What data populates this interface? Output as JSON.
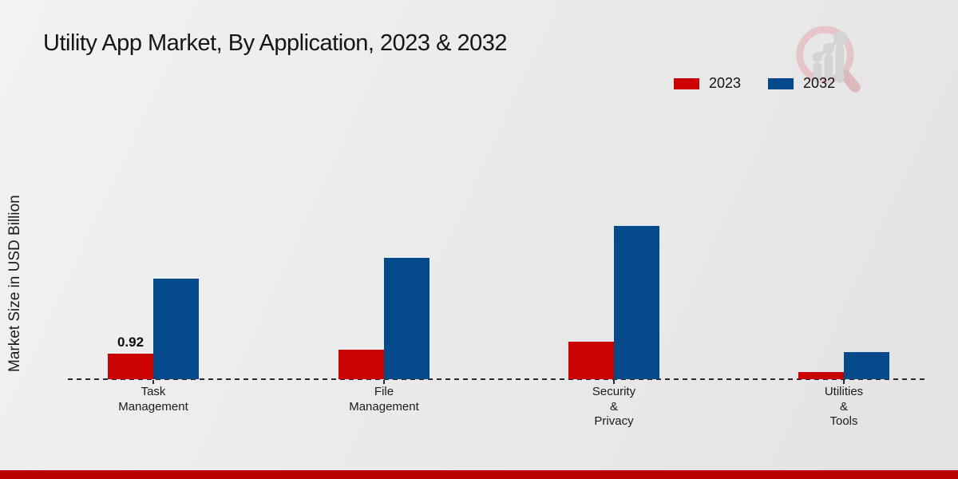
{
  "page": {
    "title": "Utility App Market, By Application, 2023 & 2032",
    "ylabel": "Market Size in USD Billion",
    "footer_color": "#b80202",
    "watermark_icon": "magnifier-bar-chart-logo"
  },
  "legend": {
    "items": [
      {
        "label": "2023",
        "color": "#cc0202"
      },
      {
        "label": "2032",
        "color": "#04498a"
      }
    ]
  },
  "chart_data": {
    "type": "bar",
    "title": "Utility App Market, By Application, 2023 & 2032",
    "ylabel": "Market Size in USD Billion",
    "categories": [
      "Task Management",
      "File Management",
      "Security & Privacy",
      "Utilities & Tools"
    ],
    "category_label_lines": [
      [
        "Task",
        "Management"
      ],
      [
        "File",
        "Management"
      ],
      [
        "Security",
        "&",
        "Privacy"
      ],
      [
        "Utilities",
        "&",
        "Tools"
      ]
    ],
    "series": [
      {
        "name": "2023",
        "color": "#cc0202",
        "values": [
          0.92,
          1.06,
          1.35,
          0.26
        ]
      },
      {
        "name": "2032",
        "color": "#04498a",
        "values": [
          3.62,
          4.37,
          5.52,
          0.98
        ]
      }
    ],
    "data_labels": [
      {
        "category_index": 0,
        "series_index": 0,
        "text": "0.92"
      }
    ],
    "ylim": [
      0,
      7
    ],
    "grid": false,
    "y_tick_labels_visible": false,
    "baseline_style": "dashed",
    "legend_position": "top-right"
  }
}
